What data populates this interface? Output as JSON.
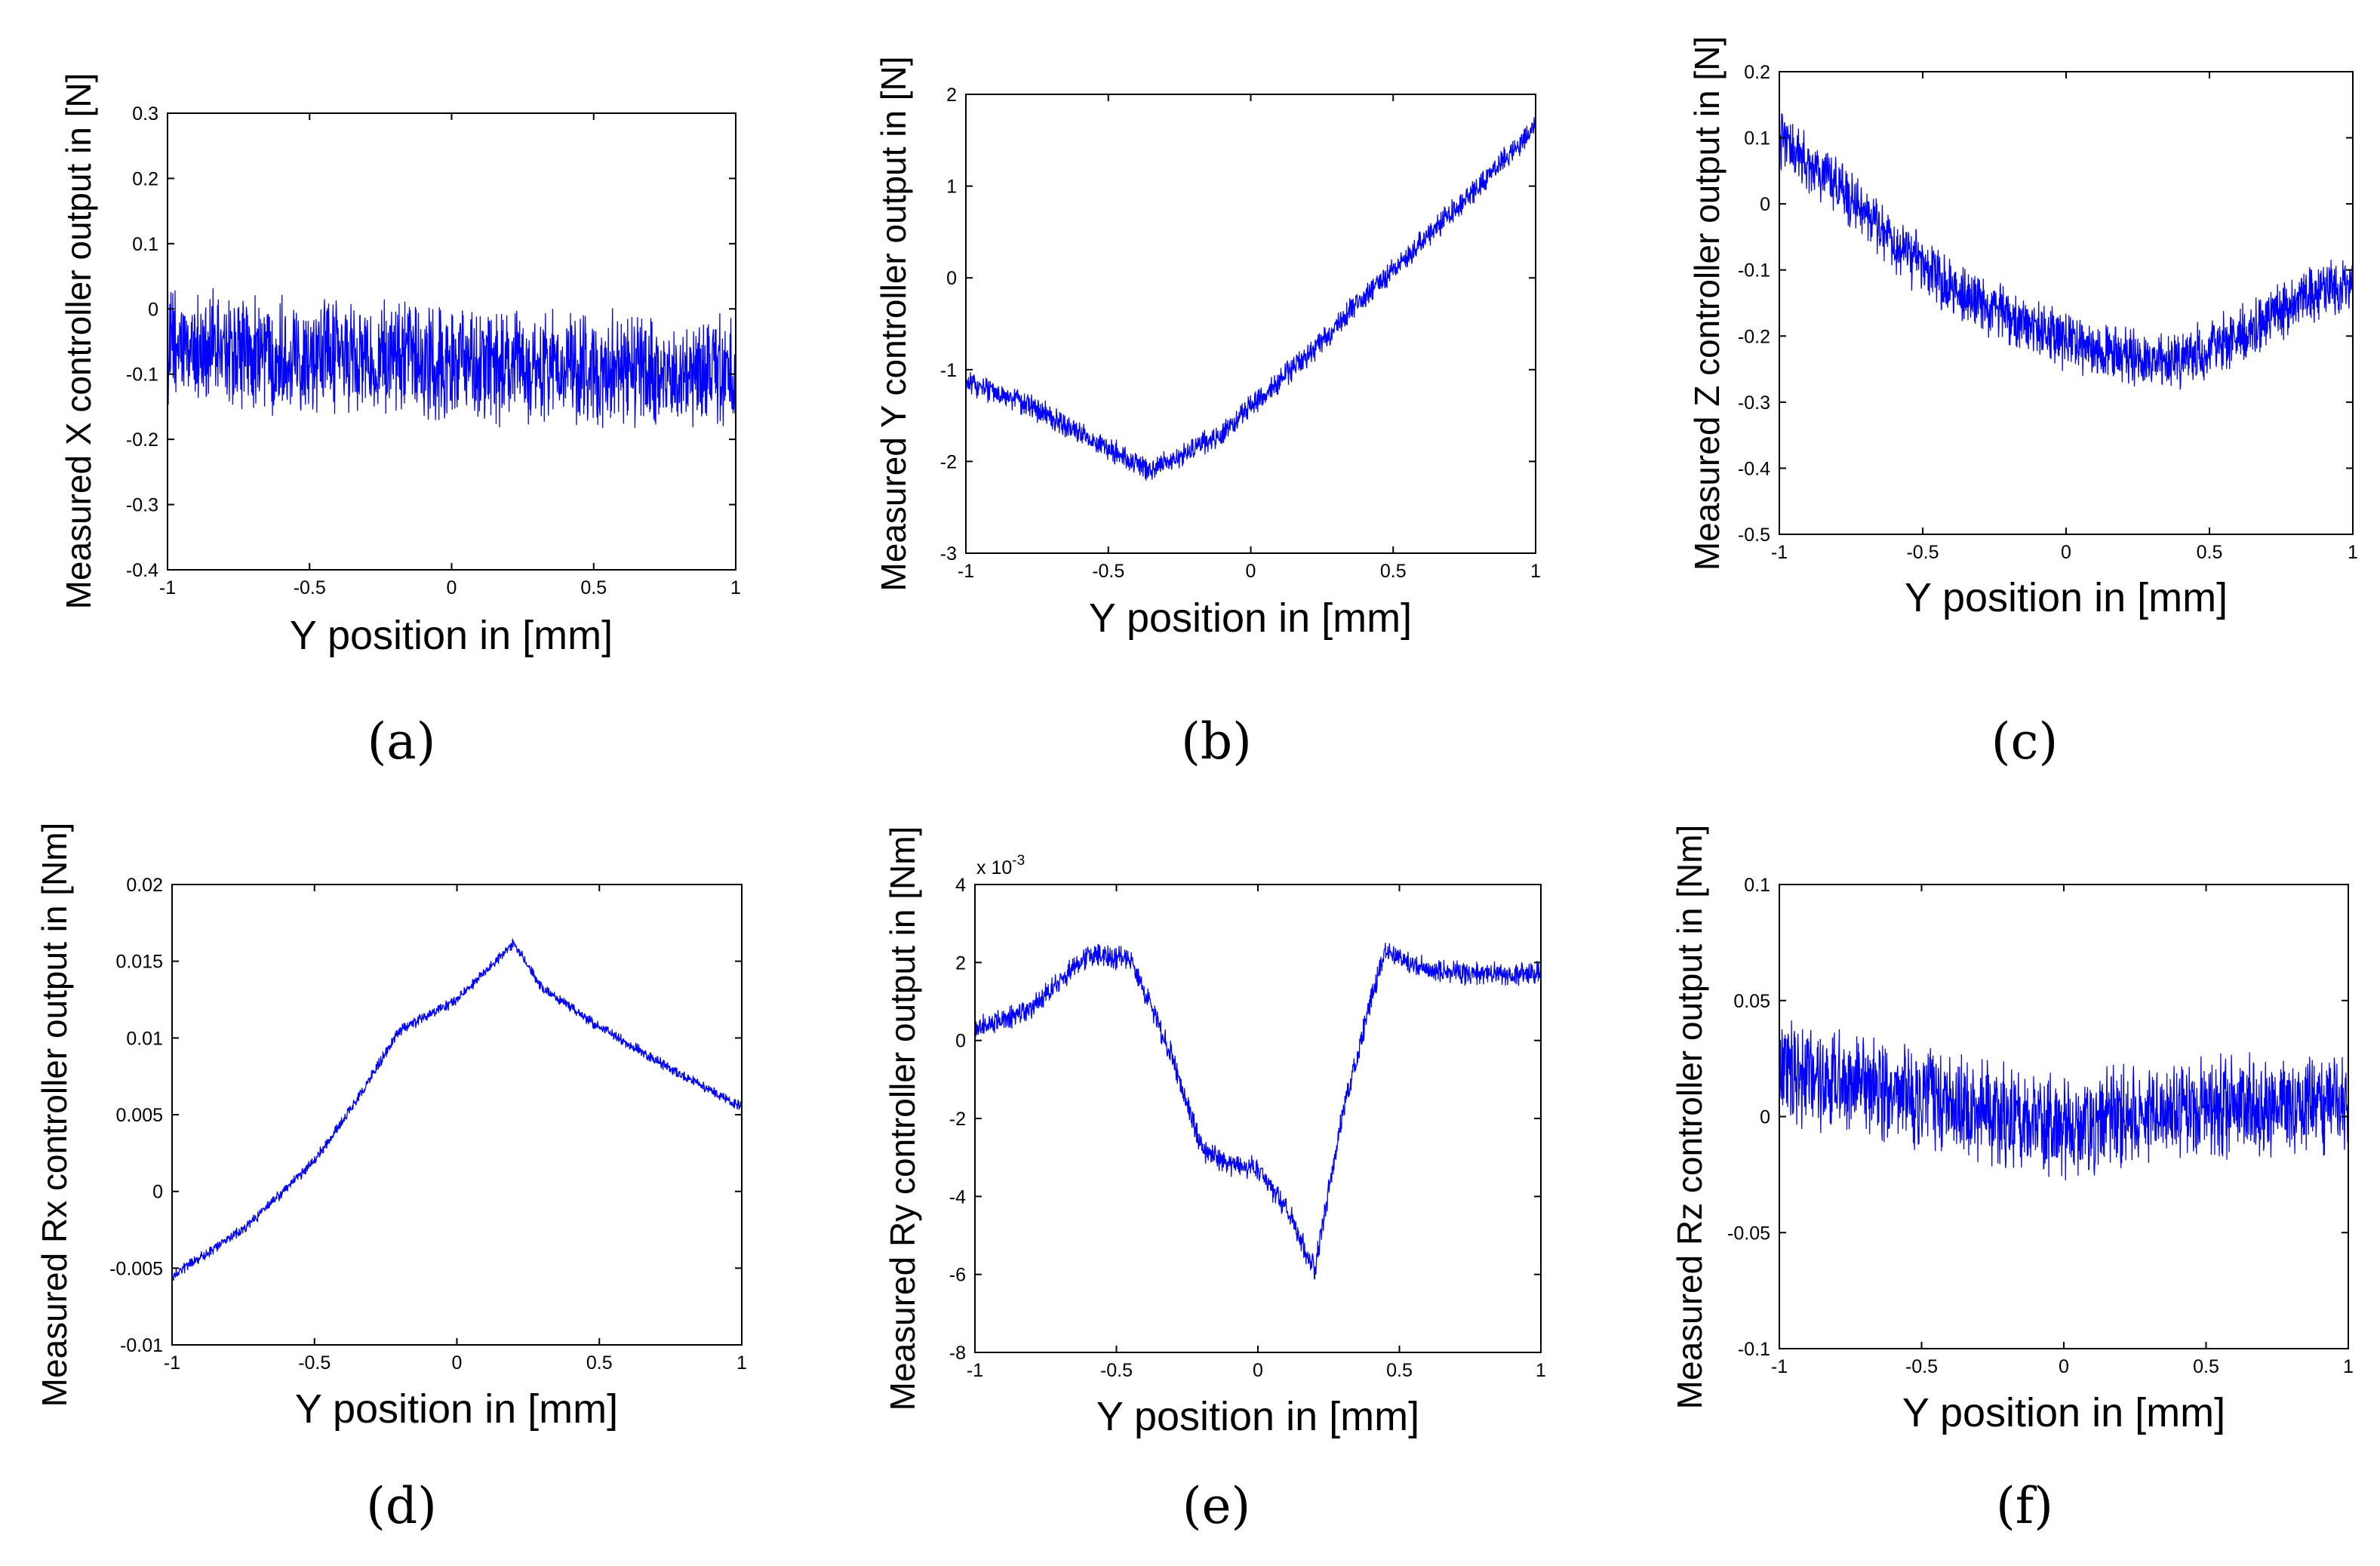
{
  "figure": {
    "panel_letters": [
      "(a)",
      "(b)",
      "(c)",
      "(d)",
      "(e)",
      "(f)"
    ]
  },
  "colors": {
    "series": "#0000ff",
    "axis": "#000000",
    "background": "#ffffff"
  },
  "chart_data": [
    {
      "panel": "(a)",
      "type": "line",
      "title": "",
      "xlabel": "Y position in [mm]",
      "ylabel": "Measured X controller output in [N]",
      "xlim": [
        -1,
        1
      ],
      "ylim": [
        -0.4,
        0.3
      ],
      "xticks": [
        -1,
        -0.5,
        0,
        0.5,
        1
      ],
      "xtick_labels": [
        "-1",
        "-0.5",
        "0",
        "0.5",
        "1"
      ],
      "yticks": [
        -0.4,
        -0.3,
        -0.2,
        -0.1,
        0,
        0.1,
        0.2,
        0.3
      ],
      "ytick_labels": [
        "-0.4",
        "-0.3",
        "-0.2",
        "-0.1",
        "0",
        "0.1",
        "0.2",
        "0.3"
      ],
      "exponent_label": "",
      "series": [
        {
          "name": "measured",
          "trend_x": [
            -1,
            -0.5,
            0,
            0.5,
            1
          ],
          "trend_y": [
            -0.06,
            -0.07,
            -0.085,
            -0.095,
            -0.1
          ],
          "noise_amplitude": 0.1
        }
      ]
    },
    {
      "panel": "(b)",
      "type": "line",
      "title": "",
      "xlabel": "Y position in [mm]",
      "ylabel": "Measured Y controller output in [N]",
      "xlim": [
        -1,
        1
      ],
      "ylim": [
        -3,
        2
      ],
      "xticks": [
        -1,
        -0.5,
        0,
        0.5,
        1
      ],
      "xtick_labels": [
        "-1",
        "-0.5",
        "0",
        "0.5",
        "1"
      ],
      "yticks": [
        -3,
        -2,
        -1,
        0,
        1,
        2
      ],
      "ytick_labels": [
        "-3",
        "-2",
        "-1",
        "0",
        "1",
        "2"
      ],
      "exponent_label": "",
      "series": [
        {
          "name": "measured",
          "trend_x": [
            -1,
            -0.8,
            -0.6,
            -0.35,
            -0.1,
            0,
            0.2,
            0.4,
            0.6,
            0.8,
            1
          ],
          "trend_y": [
            -1.15,
            -1.35,
            -1.7,
            -2.1,
            -1.7,
            -1.4,
            -0.85,
            -0.2,
            0.4,
            1.0,
            1.65
          ],
          "noise_amplitude": 0.15
        }
      ]
    },
    {
      "panel": "(c)",
      "type": "line",
      "title": "",
      "xlabel": "Y position in [mm]",
      "ylabel": "Measured Z controller output in [N]",
      "xlim": [
        -1,
        1
      ],
      "ylim": [
        -0.5,
        0.2
      ],
      "xticks": [
        -1,
        -0.5,
        0,
        0.5,
        1
      ],
      "xtick_labels": [
        "-1",
        "-0.5",
        "0",
        "0.5",
        "1"
      ],
      "yticks": [
        -0.5,
        -0.4,
        -0.3,
        -0.2,
        -0.1,
        0,
        0.1,
        0.2
      ],
      "ytick_labels": [
        "-0.5",
        "-0.4",
        "-0.3",
        "-0.2",
        "-0.1",
        "0",
        "0.1",
        "0.2"
      ],
      "exponent_label": "",
      "series": [
        {
          "name": "measured",
          "trend_x": [
            -1,
            -0.8,
            -0.6,
            -0.4,
            -0.2,
            0,
            0.2,
            0.3,
            0.4,
            0.6,
            0.8,
            1
          ],
          "trend_y": [
            0.1,
            0.03,
            -0.06,
            -0.13,
            -0.17,
            -0.21,
            -0.23,
            -0.24,
            -0.24,
            -0.2,
            -0.15,
            -0.12
          ],
          "noise_amplitude": 0.05
        }
      ]
    },
    {
      "panel": "(d)",
      "type": "line",
      "title": "",
      "xlabel": "Y position in [mm]",
      "ylabel": "Measured Rx controller output in [Nm]",
      "xlim": [
        -1,
        1
      ],
      "ylim": [
        -0.01,
        0.02
      ],
      "xticks": [
        -1,
        -0.5,
        0,
        0.5,
        1
      ],
      "xtick_labels": [
        "-1",
        "-0.5",
        "0",
        "0.5",
        "1"
      ],
      "yticks": [
        -0.01,
        -0.005,
        0,
        0.005,
        0.01,
        0.015,
        0.02
      ],
      "ytick_labels": [
        "-0.01",
        "-0.005",
        "0",
        "0.005",
        "0.01",
        "0.015",
        "0.02"
      ],
      "exponent_label": "",
      "series": [
        {
          "name": "measured",
          "trend_x": [
            -1,
            -0.75,
            -0.5,
            -0.35,
            -0.2,
            0,
            0.2,
            0.3,
            0.5,
            0.75,
            1
          ],
          "trend_y": [
            -0.0055,
            -0.0025,
            0.002,
            0.006,
            0.0105,
            0.0125,
            0.0162,
            0.0132,
            0.0107,
            0.008,
            0.0055
          ],
          "noise_amplitude": 0.0004
        }
      ]
    },
    {
      "panel": "(e)",
      "type": "line",
      "title": "",
      "xlabel": "Y position in [mm]",
      "ylabel": "Measured Ry controller output in [Nm]",
      "xlim": [
        -1,
        1
      ],
      "ylim": [
        -8,
        4
      ],
      "xticks": [
        -1,
        -0.5,
        0,
        0.5,
        1
      ],
      "xtick_labels": [
        "-1",
        "-0.5",
        "0",
        "0.5",
        "1"
      ],
      "yticks": [
        -8,
        -6,
        -4,
        -2,
        0,
        2,
        4
      ],
      "ytick_labels": [
        "-8",
        "-6",
        "-4",
        "-2",
        "0",
        "2",
        "4"
      ],
      "exponent_label": "x 10",
      "exponent_power": "-3",
      "series": [
        {
          "name": "measured",
          "trend_x": [
            -1,
            -0.8,
            -0.6,
            -0.45,
            -0.3,
            -0.2,
            -0.1,
            0,
            0.1,
            0.2,
            0.3,
            0.4,
            0.45,
            0.6,
            0.8,
            1
          ],
          "trend_y": [
            0.3,
            0.8,
            2.2,
            2.1,
            -0.5,
            -2.8,
            -3.2,
            -3.3,
            -4.3,
            -5.9,
            -1.8,
            1.0,
            2.3,
            1.8,
            1.7,
            1.7
          ],
          "noise_amplitude": 0.35
        }
      ]
    },
    {
      "panel": "(f)",
      "type": "line",
      "title": "",
      "xlabel": "Y position in [mm]",
      "ylabel": "Measured Rz controller output in [Nm]",
      "xlim": [
        -1,
        1
      ],
      "ylim": [
        -0.1,
        0.1
      ],
      "xticks": [
        -1,
        -0.5,
        0,
        0.5,
        1
      ],
      "xtick_labels": [
        "-1",
        "-0.5",
        "0",
        "0.5",
        "1"
      ],
      "yticks": [
        -0.1,
        -0.05,
        0,
        0.05,
        0.1
      ],
      "ytick_labels": [
        "-0.1",
        "-0.05",
        "0",
        "0.05",
        "0.1"
      ],
      "exponent_label": "",
      "series": [
        {
          "name": "measured",
          "trend_x": [
            -1,
            -0.5,
            0,
            0.5,
            1
          ],
          "trend_y": [
            0.02,
            0.008,
            -0.005,
            0.005,
            0.005
          ],
          "noise_amplitude": 0.025
        }
      ]
    }
  ]
}
